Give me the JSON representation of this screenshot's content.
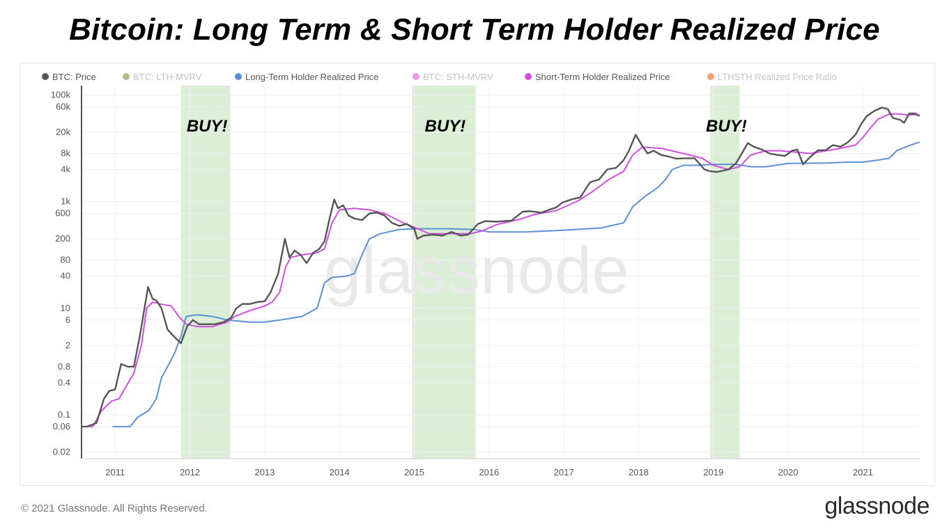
{
  "title": "Bitcoin: Long Term & Short Term Holder Realized Price",
  "footer": {
    "copyright": "© 2021 Glassnode. All Rights Reserved.",
    "logo": "glassnode"
  },
  "watermark": "glassnode",
  "colors": {
    "price": "#555555",
    "lth": "#5b8fd6",
    "sth": "#d14fe0",
    "buy_zone": "#dbeed6",
    "lth_mvrv_legend": "#a8a86a",
    "sth_mvrv_legend": "#e07fe8",
    "ratio_legend": "#f08a4b"
  },
  "chart_data": {
    "type": "line",
    "title": "Bitcoin: Long Term & Short Term Holder Realized Price",
    "y_scale": "log",
    "ylim": [
      0.015,
      150000
    ],
    "xlim": [
      2010.55,
      2021.75
    ],
    "grid": true,
    "legend_position": "top",
    "legend": [
      {
        "label": "BTC: Price",
        "color": "#555555",
        "dimmed": false
      },
      {
        "label": "BTC: LTH-MVRV",
        "color": "#a8a86a",
        "dimmed": true
      },
      {
        "label": "Long-Term Holder Realized Price",
        "color": "#5b8fd6",
        "dimmed": false
      },
      {
        "label": "BTC: STH-MVRV",
        "color": "#e07fe8",
        "dimmed": true
      },
      {
        "label": "Short-Term Holder Realized Price",
        "color": "#d14fe0",
        "dimmed": false
      },
      {
        "label": "LTHSTH Realized Price Ratio",
        "color": "#f08a4b",
        "dimmed": true
      }
    ],
    "y_ticks": [
      {
        "value": 100000,
        "label": "100k"
      },
      {
        "value": 60000,
        "label": "60k"
      },
      {
        "value": 20000,
        "label": "20k"
      },
      {
        "value": 8000,
        "label": "8k"
      },
      {
        "value": 4000,
        "label": "4k"
      },
      {
        "value": 1000,
        "label": "1k"
      },
      {
        "value": 600,
        "label": "600"
      },
      {
        "value": 200,
        "label": "200"
      },
      {
        "value": 80,
        "label": "80"
      },
      {
        "value": 40,
        "label": "40"
      },
      {
        "value": 10,
        "label": "10"
      },
      {
        "value": 6,
        "label": "6"
      },
      {
        "value": 2,
        "label": "2"
      },
      {
        "value": 0.8,
        "label": "0.8"
      },
      {
        "value": 0.4,
        "label": "0.4"
      },
      {
        "value": 0.1,
        "label": "0.1"
      },
      {
        "value": 0.06,
        "label": "0.06"
      },
      {
        "value": 0.02,
        "label": "0.02"
      }
    ],
    "x_ticks": [
      {
        "value": 2011,
        "label": "2011"
      },
      {
        "value": 2012,
        "label": "2012"
      },
      {
        "value": 2013,
        "label": "2013"
      },
      {
        "value": 2014,
        "label": "2014"
      },
      {
        "value": 2015,
        "label": "2015"
      },
      {
        "value": 2016,
        "label": "2016"
      },
      {
        "value": 2017,
        "label": "2017"
      },
      {
        "value": 2018,
        "label": "2018"
      },
      {
        "value": 2019,
        "label": "2019"
      },
      {
        "value": 2020,
        "label": "2020"
      },
      {
        "value": 2021,
        "label": "2021"
      }
    ],
    "buy_zones": [
      {
        "start": 2011.88,
        "end": 2012.54,
        "label": "BUY!"
      },
      {
        "start": 2014.97,
        "end": 2015.82,
        "label": "BUY!"
      },
      {
        "start": 2018.96,
        "end": 2019.35,
        "label": "BUY!"
      }
    ],
    "series": [
      {
        "name": "BTC: Price",
        "color": "#555555",
        "points": [
          [
            2010.55,
            0.06
          ],
          [
            2010.62,
            0.06
          ],
          [
            2010.75,
            0.07
          ],
          [
            2010.85,
            0.2
          ],
          [
            2010.92,
            0.28
          ],
          [
            2011.0,
            0.3
          ],
          [
            2011.08,
            0.9
          ],
          [
            2011.17,
            0.8
          ],
          [
            2011.25,
            0.8
          ],
          [
            2011.33,
            3
          ],
          [
            2011.38,
            8
          ],
          [
            2011.44,
            25
          ],
          [
            2011.5,
            15
          ],
          [
            2011.55,
            14
          ],
          [
            2011.62,
            10
          ],
          [
            2011.7,
            4
          ],
          [
            2011.78,
            3
          ],
          [
            2011.88,
            2.2
          ],
          [
            2011.96,
            4.5
          ],
          [
            2012.04,
            6
          ],
          [
            2012.12,
            5
          ],
          [
            2012.22,
            5
          ],
          [
            2012.33,
            5
          ],
          [
            2012.45,
            5.5
          ],
          [
            2012.55,
            6.6
          ],
          [
            2012.62,
            10
          ],
          [
            2012.7,
            12
          ],
          [
            2012.8,
            12
          ],
          [
            2012.9,
            13
          ],
          [
            2013.0,
            13.5
          ],
          [
            2013.08,
            20
          ],
          [
            2013.18,
            45
          ],
          [
            2013.27,
            200
          ],
          [
            2013.33,
            90
          ],
          [
            2013.4,
            120
          ],
          [
            2013.48,
            100
          ],
          [
            2013.56,
            70
          ],
          [
            2013.65,
            110
          ],
          [
            2013.73,
            130
          ],
          [
            2013.8,
            180
          ],
          [
            2013.87,
            500
          ],
          [
            2013.93,
            1100
          ],
          [
            2013.98,
            750
          ],
          [
            2014.05,
            850
          ],
          [
            2014.12,
            550
          ],
          [
            2014.2,
            480
          ],
          [
            2014.3,
            450
          ],
          [
            2014.4,
            600
          ],
          [
            2014.5,
            620
          ],
          [
            2014.6,
            550
          ],
          [
            2014.7,
            400
          ],
          [
            2014.8,
            350
          ],
          [
            2014.9,
            380
          ],
          [
            2015.0,
            310
          ],
          [
            2015.04,
            200
          ],
          [
            2015.12,
            230
          ],
          [
            2015.25,
            240
          ],
          [
            2015.38,
            230
          ],
          [
            2015.5,
            270
          ],
          [
            2015.62,
            230
          ],
          [
            2015.72,
            240
          ],
          [
            2015.85,
            380
          ],
          [
            2015.95,
            430
          ],
          [
            2016.1,
            420
          ],
          [
            2016.3,
            440
          ],
          [
            2016.45,
            650
          ],
          [
            2016.55,
            660
          ],
          [
            2016.7,
            620
          ],
          [
            2016.8,
            700
          ],
          [
            2016.9,
            780
          ],
          [
            2016.98,
            960
          ],
          [
            2017.1,
            1100
          ],
          [
            2017.22,
            1200
          ],
          [
            2017.35,
            2300
          ],
          [
            2017.47,
            2600
          ],
          [
            2017.58,
            4000
          ],
          [
            2017.7,
            4300
          ],
          [
            2017.8,
            6000
          ],
          [
            2017.87,
            9000
          ],
          [
            2017.96,
            18000
          ],
          [
            2018.05,
            11000
          ],
          [
            2018.12,
            8000
          ],
          [
            2018.2,
            9000
          ],
          [
            2018.3,
            7500
          ],
          [
            2018.4,
            7000
          ],
          [
            2018.5,
            6400
          ],
          [
            2018.6,
            6500
          ],
          [
            2018.75,
            6500
          ],
          [
            2018.88,
            4000
          ],
          [
            2018.96,
            3700
          ],
          [
            2019.05,
            3600
          ],
          [
            2019.2,
            4000
          ],
          [
            2019.3,
            5200
          ],
          [
            2019.38,
            8000
          ],
          [
            2019.46,
            12500
          ],
          [
            2019.55,
            10500
          ],
          [
            2019.65,
            9500
          ],
          [
            2019.75,
            8000
          ],
          [
            2019.85,
            7500
          ],
          [
            2019.96,
            7200
          ],
          [
            2020.05,
            9000
          ],
          [
            2020.12,
            9500
          ],
          [
            2020.2,
            5000
          ],
          [
            2020.3,
            7000
          ],
          [
            2020.4,
            9200
          ],
          [
            2020.5,
            9200
          ],
          [
            2020.6,
            11500
          ],
          [
            2020.7,
            10700
          ],
          [
            2020.8,
            13000
          ],
          [
            2020.9,
            18000
          ],
          [
            2020.98,
            29000
          ],
          [
            2021.05,
            40000
          ],
          [
            2021.15,
            50000
          ],
          [
            2021.25,
            58000
          ],
          [
            2021.33,
            55000
          ],
          [
            2021.4,
            37000
          ],
          [
            2021.5,
            34000
          ],
          [
            2021.55,
            30000
          ],
          [
            2021.62,
            45000
          ],
          [
            2021.7,
            45000
          ],
          [
            2021.75,
            41000
          ]
        ]
      },
      {
        "name": "Long-Term Holder Realized Price",
        "color": "#5b8fd6",
        "points": [
          [
            2010.97,
            0.06
          ],
          [
            2011.2,
            0.06
          ],
          [
            2011.3,
            0.09
          ],
          [
            2011.45,
            0.12
          ],
          [
            2011.55,
            0.2
          ],
          [
            2011.62,
            0.5
          ],
          [
            2011.7,
            0.8
          ],
          [
            2011.8,
            1.5
          ],
          [
            2011.88,
            3
          ],
          [
            2011.95,
            7
          ],
          [
            2012.1,
            7.5
          ],
          [
            2012.3,
            7
          ],
          [
            2012.5,
            6
          ],
          [
            2012.8,
            5.5
          ],
          [
            2013.0,
            5.5
          ],
          [
            2013.2,
            6
          ],
          [
            2013.5,
            7
          ],
          [
            2013.7,
            10
          ],
          [
            2013.8,
            30
          ],
          [
            2013.9,
            38
          ],
          [
            2014.1,
            40
          ],
          [
            2014.2,
            45
          ],
          [
            2014.3,
            100
          ],
          [
            2014.4,
            200
          ],
          [
            2014.55,
            250
          ],
          [
            2014.8,
            300
          ],
          [
            2015.0,
            310
          ],
          [
            2015.5,
            310
          ],
          [
            2015.8,
            300
          ],
          [
            2016.0,
            270
          ],
          [
            2016.5,
            270
          ],
          [
            2017.0,
            290
          ],
          [
            2017.5,
            320
          ],
          [
            2017.8,
            400
          ],
          [
            2017.92,
            800
          ],
          [
            2018.1,
            1300
          ],
          [
            2018.25,
            1800
          ],
          [
            2018.35,
            2500
          ],
          [
            2018.45,
            4000
          ],
          [
            2018.6,
            4800
          ],
          [
            2018.8,
            4800
          ],
          [
            2019.0,
            5000
          ],
          [
            2019.3,
            5000
          ],
          [
            2019.5,
            4500
          ],
          [
            2019.7,
            4500
          ],
          [
            2020.0,
            5200
          ],
          [
            2020.5,
            5300
          ],
          [
            2020.8,
            5500
          ],
          [
            2021.0,
            5500
          ],
          [
            2021.2,
            6000
          ],
          [
            2021.35,
            6500
          ],
          [
            2021.45,
            9000
          ],
          [
            2021.6,
            11000
          ],
          [
            2021.75,
            13000
          ]
        ]
      },
      {
        "name": "Short-Term Holder Realized Price",
        "color": "#d14fe0",
        "points": [
          [
            2010.55,
            0.06
          ],
          [
            2010.7,
            0.06
          ],
          [
            2010.82,
            0.12
          ],
          [
            2010.95,
            0.18
          ],
          [
            2011.05,
            0.2
          ],
          [
            2011.15,
            0.35
          ],
          [
            2011.25,
            0.6
          ],
          [
            2011.35,
            2
          ],
          [
            2011.42,
            10
          ],
          [
            2011.5,
            13
          ],
          [
            2011.6,
            12
          ],
          [
            2011.75,
            11
          ],
          [
            2011.85,
            7
          ],
          [
            2011.95,
            5
          ],
          [
            2012.1,
            4.5
          ],
          [
            2012.3,
            4.5
          ],
          [
            2012.5,
            5.5
          ],
          [
            2012.6,
            7
          ],
          [
            2012.8,
            9
          ],
          [
            2013.0,
            11
          ],
          [
            2013.1,
            13
          ],
          [
            2013.2,
            20
          ],
          [
            2013.28,
            60
          ],
          [
            2013.35,
            90
          ],
          [
            2013.5,
            100
          ],
          [
            2013.7,
            110
          ],
          [
            2013.8,
            130
          ],
          [
            2013.9,
            400
          ],
          [
            2014.0,
            700
          ],
          [
            2014.2,
            750
          ],
          [
            2014.4,
            700
          ],
          [
            2014.6,
            600
          ],
          [
            2014.85,
            400
          ],
          [
            2015.0,
            330
          ],
          [
            2015.2,
            250
          ],
          [
            2015.5,
            250
          ],
          [
            2015.75,
            250
          ],
          [
            2015.9,
            280
          ],
          [
            2016.1,
            370
          ],
          [
            2016.4,
            460
          ],
          [
            2016.6,
            570
          ],
          [
            2016.9,
            680
          ],
          [
            2017.2,
            1050
          ],
          [
            2017.4,
            1600
          ],
          [
            2017.6,
            2600
          ],
          [
            2017.8,
            3700
          ],
          [
            2017.92,
            7500
          ],
          [
            2018.05,
            10500
          ],
          [
            2018.3,
            10000
          ],
          [
            2018.6,
            8000
          ],
          [
            2018.85,
            6500
          ],
          [
            2019.0,
            4800
          ],
          [
            2019.2,
            4000
          ],
          [
            2019.35,
            4500
          ],
          [
            2019.5,
            7500
          ],
          [
            2019.7,
            9000
          ],
          [
            2019.9,
            9000
          ],
          [
            2020.1,
            8500
          ],
          [
            2020.3,
            8000
          ],
          [
            2020.5,
            9000
          ],
          [
            2020.7,
            10000
          ],
          [
            2020.9,
            11500
          ],
          [
            2021.0,
            16000
          ],
          [
            2021.1,
            24000
          ],
          [
            2021.2,
            35000
          ],
          [
            2021.35,
            44000
          ],
          [
            2021.5,
            44000
          ],
          [
            2021.6,
            42000
          ],
          [
            2021.7,
            43000
          ],
          [
            2021.75,
            41000
          ]
        ]
      }
    ]
  }
}
